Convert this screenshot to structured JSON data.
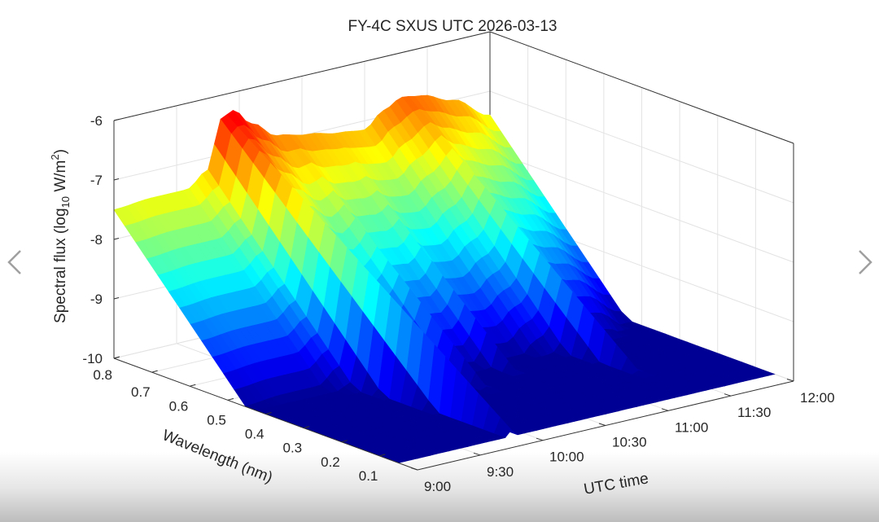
{
  "gallery": {
    "prev_label": "previous",
    "next_label": "next"
  },
  "chart_data": {
    "type": "surface",
    "title": "FY-4C SXUS UTC 2026-03-13",
    "xlabel": "UTC time",
    "ylabel": "Wavelength (nm)",
    "zlabel": {
      "main": "Spectral flux  (log",
      "sub": "10",
      "mid": " W/m",
      "sup": "2",
      "end": ")"
    },
    "xlim_hours": [
      9,
      12
    ],
    "ylim": [
      0.05,
      0.8
    ],
    "zlim": [
      -10,
      -6
    ],
    "x_ticks": [
      {
        "v": 9.0,
        "label": "9:00"
      },
      {
        "v": 9.5,
        "label": "9:30"
      },
      {
        "v": 10.0,
        "label": "10:00"
      },
      {
        "v": 10.5,
        "label": "10:30"
      },
      {
        "v": 11.0,
        "label": "11:00"
      },
      {
        "v": 11.5,
        "label": "11:30"
      },
      {
        "v": 12.0,
        "label": "12:00"
      }
    ],
    "y_ticks": [
      {
        "v": 0.1,
        "label": "0.1"
      },
      {
        "v": 0.2,
        "label": "0.2"
      },
      {
        "v": 0.3,
        "label": "0.3"
      },
      {
        "v": 0.4,
        "label": "0.4"
      },
      {
        "v": 0.5,
        "label": "0.5"
      },
      {
        "v": 0.6,
        "label": "0.6"
      },
      {
        "v": 0.7,
        "label": "0.7"
      },
      {
        "v": 0.8,
        "label": "0.8"
      }
    ],
    "z_ticks": [
      {
        "v": -6,
        "label": "-6"
      },
      {
        "v": -7,
        "label": "-7"
      },
      {
        "v": -8,
        "label": "-8"
      },
      {
        "v": -9,
        "label": "-9"
      },
      {
        "v": -10,
        "label": "-10"
      }
    ],
    "colormap": "jet",
    "grid": true,
    "profile_at_0p8nm": {
      "time_hours": [
        9.0,
        9.3,
        9.58,
        9.75,
        9.85,
        9.95,
        10.1,
        10.3,
        10.55,
        10.8,
        11.0,
        11.15,
        11.3,
        11.45,
        11.7,
        12.0
      ],
      "log_flux": [
        -7.5,
        -7.45,
        -7.45,
        -7.2,
        -6.4,
        -6.3,
        -6.6,
        -6.9,
        -7.0,
        -7.1,
        -7.15,
        -6.9,
        -6.75,
        -6.8,
        -7.0,
        -7.4
      ]
    },
    "spectral_slope_log_per_nm": 7.2,
    "flares": [
      {
        "time_hours": 9.9,
        "peak_log_flux_0p8nm": -6.3
      },
      {
        "time_hours": 11.35,
        "peak_log_flux_0p8nm": -6.75
      }
    ]
  }
}
